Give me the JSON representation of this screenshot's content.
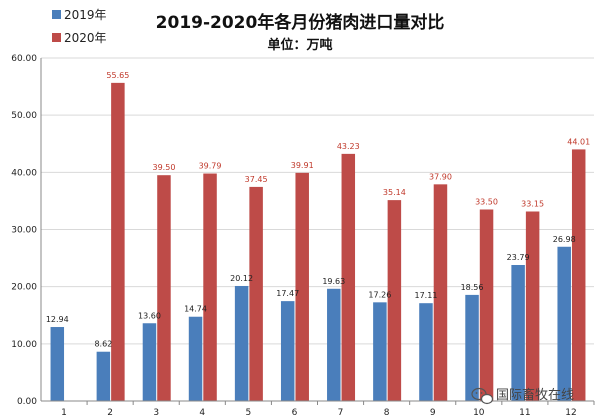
{
  "chart_data": {
    "type": "bar",
    "title": "2019-2020年各月份猪肉进口量对比",
    "subtitle": "单位：万吨",
    "xlabel": "",
    "ylabel": "",
    "categories": [
      "1",
      "2",
      "3",
      "4",
      "5",
      "6",
      "7",
      "8",
      "9",
      "10",
      "11",
      "12"
    ],
    "series": [
      {
        "name": "2019年",
        "color": "#4a7ebb",
        "values": [
          12.94,
          8.62,
          13.6,
          14.74,
          20.12,
          17.47,
          19.63,
          17.26,
          17.11,
          18.56,
          23.79,
          26.98
        ],
        "labels": [
          "12.94",
          "8.62",
          "13.60",
          "14.74",
          "20.12",
          "17.47",
          "19.63",
          "17.26",
          "17.11",
          "18.56",
          "23.79",
          "26.98"
        ]
      },
      {
        "name": "2020年",
        "color": "#be4b48",
        "values": [
          null,
          55.65,
          39.5,
          39.79,
          37.45,
          39.91,
          43.23,
          35.14,
          37.9,
          33.5,
          33.15,
          44.01
        ],
        "labels": [
          "",
          "55.65",
          "39.50",
          "39.79",
          "37.45",
          "39.91",
          "43.23",
          "35.14",
          "37.90",
          "33.50",
          "33.15",
          "44.01"
        ]
      }
    ],
    "ylim": [
      0,
      60
    ],
    "yticks": [
      "0.00",
      "10.00",
      "20.00",
      "30.00",
      "40.00",
      "50.00",
      "60.00"
    ],
    "grid": true,
    "legend_position": "top-left",
    "label_colors": {
      "2019年": "#222222",
      "2020年": "#c0392b"
    }
  },
  "watermark": {
    "text": "国际畜牧在线",
    "icon": "wechat-icon"
  }
}
